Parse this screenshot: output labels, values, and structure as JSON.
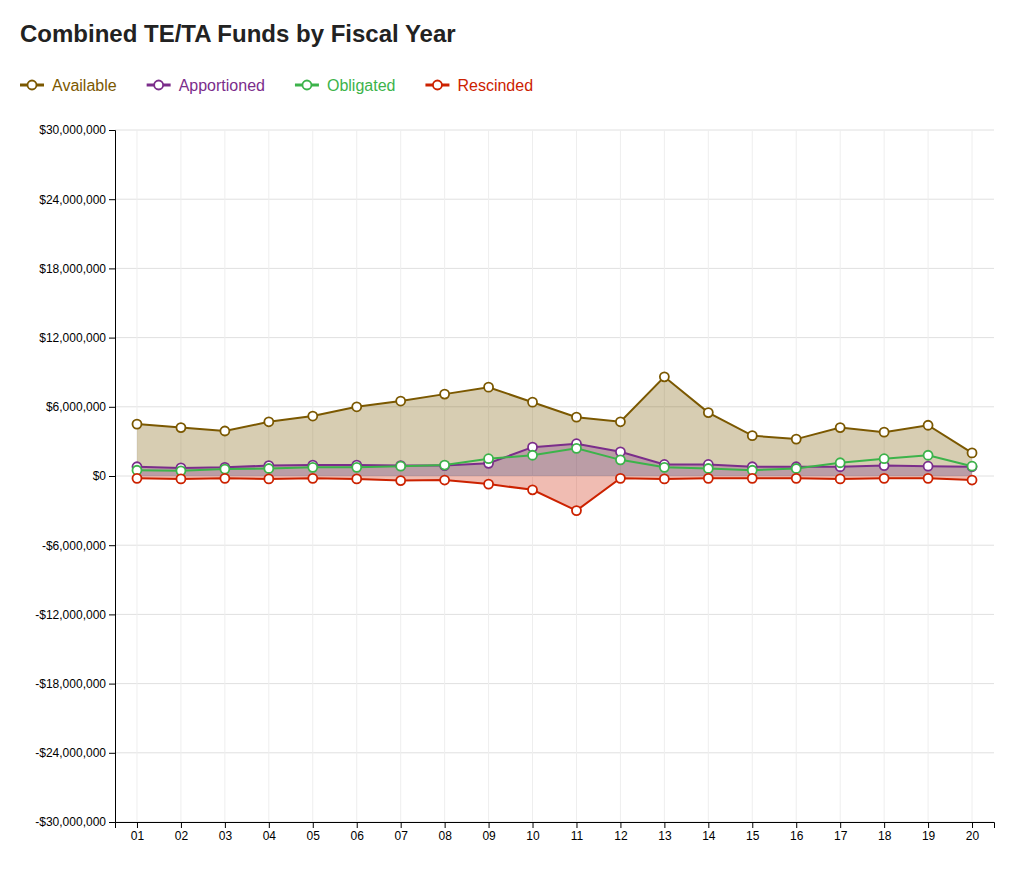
{
  "chart_data": {
    "type": "line",
    "title": "Combined TE/TA Funds by Fiscal Year",
    "categories": [
      "01",
      "02",
      "03",
      "04",
      "05",
      "06",
      "07",
      "08",
      "09",
      "10",
      "11",
      "12",
      "13",
      "14",
      "15",
      "16",
      "17",
      "18",
      "19",
      "20"
    ],
    "series": [
      {
        "name": "Available",
        "color": "#7B5800",
        "type": "area",
        "values": [
          4500000,
          4200000,
          3900000,
          4700000,
          5200000,
          6000000,
          6500000,
          7100000,
          7700000,
          6400000,
          5100000,
          4700000,
          8600000,
          5500000,
          3500000,
          3200000,
          4200000,
          3800000,
          4400000,
          2000000
        ]
      },
      {
        "name": "Apportioned",
        "color": "#7B2D8B",
        "type": "area",
        "values": [
          800000,
          700000,
          750000,
          900000,
          950000,
          950000,
          900000,
          900000,
          1100000,
          2500000,
          2800000,
          2100000,
          1000000,
          1000000,
          800000,
          800000,
          800000,
          900000,
          850000,
          800000
        ]
      },
      {
        "name": "Obligated",
        "color": "#3CB34A",
        "type": "line",
        "values": [
          500000,
          450000,
          600000,
          650000,
          750000,
          750000,
          850000,
          950000,
          1500000,
          1800000,
          2400000,
          1400000,
          750000,
          650000,
          500000,
          650000,
          1150000,
          1500000,
          1800000,
          850000
        ]
      },
      {
        "name": "Rescinded",
        "color": "#CC2200",
        "type": "area",
        "values": [
          -200000,
          -250000,
          -200000,
          -250000,
          -200000,
          -250000,
          -400000,
          -350000,
          -700000,
          -1200000,
          -3000000,
          -200000,
          -250000,
          -200000,
          -200000,
          -200000,
          -250000,
          -200000,
          -200000,
          -350000
        ]
      }
    ],
    "ylim": [
      -30000000,
      30000000
    ],
    "yticks": [
      {
        "value": -30000000,
        "label": "-$30,000,000"
      },
      {
        "value": -24000000,
        "label": "-$24,000,000"
      },
      {
        "value": -18000000,
        "label": "-$18,000,000"
      },
      {
        "value": -12000000,
        "label": "-$12,000,000"
      },
      {
        "value": -6000000,
        "label": "-$6,000,000"
      },
      {
        "value": 0,
        "label": "$0"
      },
      {
        "value": 6000000,
        "label": "$6,000,000"
      },
      {
        "value": 12000000,
        "label": "$12,000,000"
      },
      {
        "value": 18000000,
        "label": "$18,000,000"
      },
      {
        "value": 24000000,
        "label": "$24,000,000"
      },
      {
        "value": 30000000,
        "label": "$30,000,000"
      }
    ],
    "marker": "circle",
    "grid": true,
    "legend": "top"
  }
}
